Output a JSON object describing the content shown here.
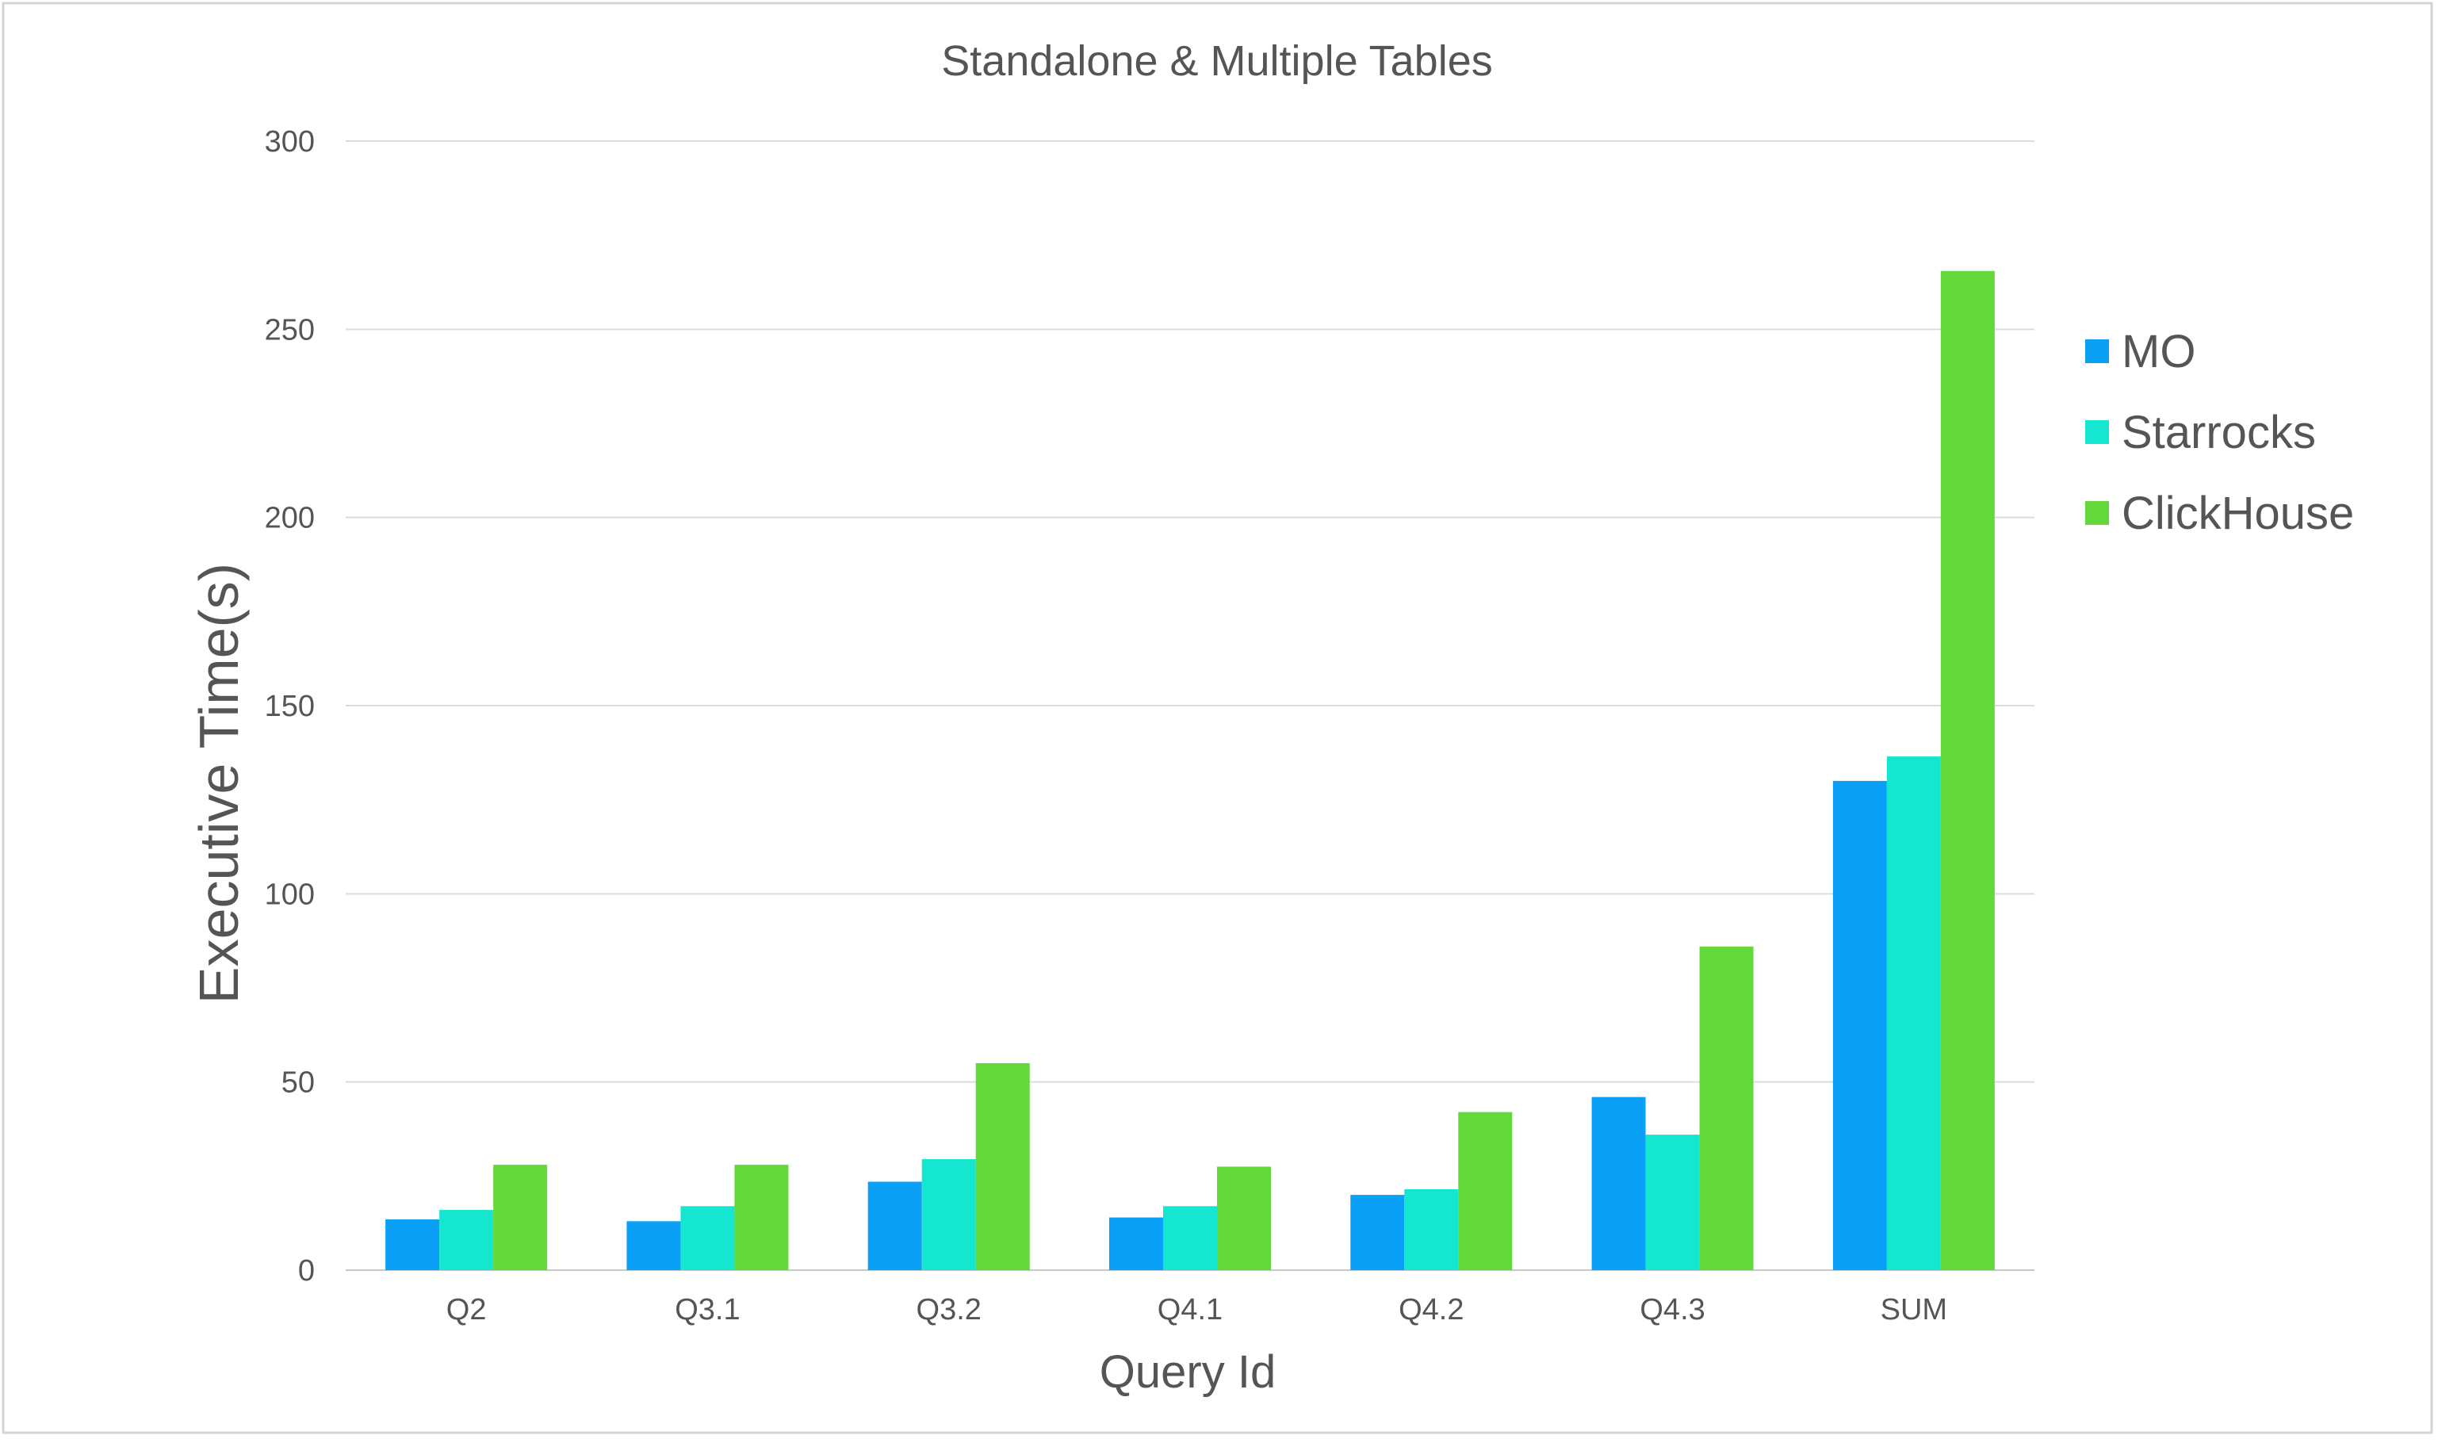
{
  "chart_data": {
    "type": "bar",
    "title": "Standalone & Multiple Tables",
    "xlabel": "Query Id",
    "ylabel": "Executive Time(s)",
    "ylim": [
      0,
      300
    ],
    "yticks": [
      0,
      50,
      100,
      150,
      200,
      250,
      300
    ],
    "grid": true,
    "legend_position": "right",
    "categories": [
      "Q2",
      "Q3.1",
      "Q3.2",
      "Q4.1",
      "Q4.2",
      "Q4.3",
      "SUM"
    ],
    "series": [
      {
        "name": "MO",
        "color": "#0aa0f5",
        "values": [
          13.5,
          13,
          23.5,
          14,
          20,
          46,
          130
        ]
      },
      {
        "name": "Starrocks",
        "color": "#15e6cf",
        "values": [
          16,
          17,
          29.5,
          17,
          21.5,
          36,
          136.5
        ]
      },
      {
        "name": "ClickHouse",
        "color": "#64d83a",
        "values": [
          28,
          28,
          55,
          27.5,
          42,
          86,
          265.5
        ]
      }
    ]
  }
}
